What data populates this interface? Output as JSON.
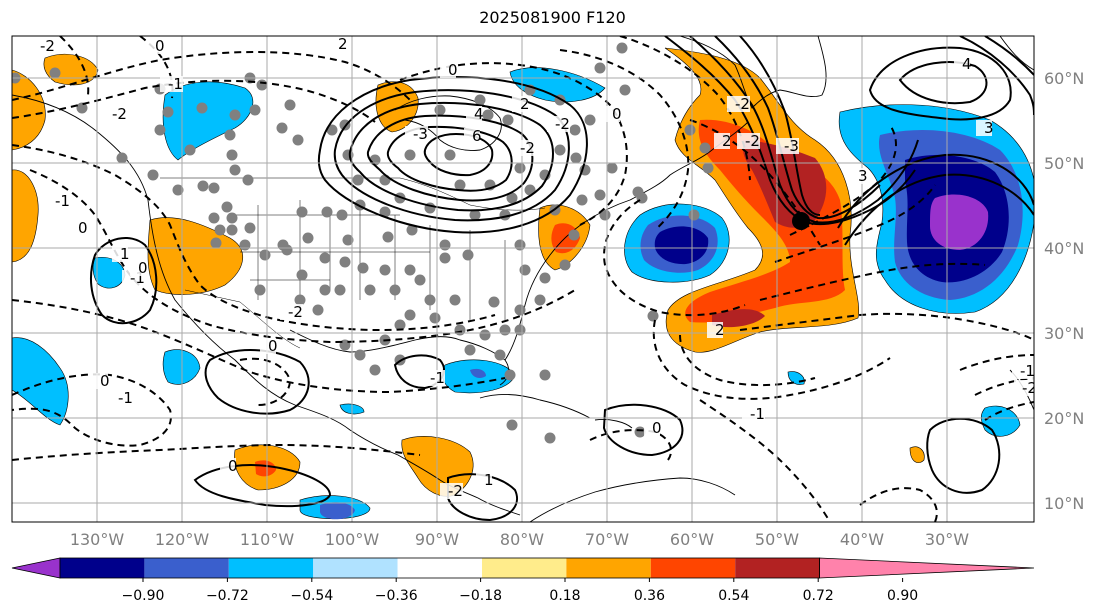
{
  "title": "2025081900 F120",
  "map": {
    "longitude_labels": [
      "130°W",
      "120°W",
      "110°W",
      "100°W",
      "90°W",
      "80°W",
      "70°W",
      "60°W",
      "50°W",
      "40°W",
      "30°W"
    ],
    "latitude_labels": [
      "60°N",
      "50°N",
      "40°N",
      "30°N",
      "20°N",
      "10°N"
    ],
    "contour_labels": [
      {
        "text": "-2"
      },
      {
        "text": "0"
      },
      {
        "text": "-1"
      },
      {
        "text": "-2"
      },
      {
        "text": "2"
      },
      {
        "text": "0"
      },
      {
        "text": "4"
      },
      {
        "text": "6"
      },
      {
        "text": "-3"
      },
      {
        "text": "-2"
      },
      {
        "text": "-2"
      },
      {
        "text": "2"
      },
      {
        "text": "0"
      },
      {
        "text": "-2"
      },
      {
        "text": "-2"
      },
      {
        "text": "2"
      },
      {
        "text": "-3"
      },
      {
        "text": "3"
      },
      {
        "text": "4"
      },
      {
        "text": "3"
      },
      {
        "text": "-1"
      },
      {
        "text": "0"
      },
      {
        "text": "-1"
      },
      {
        "text": "0"
      },
      {
        "text": "-2"
      },
      {
        "text": "1"
      },
      {
        "text": "0"
      },
      {
        "text": "0"
      },
      {
        "text": "-1"
      },
      {
        "text": "-2"
      },
      {
        "text": "-1"
      },
      {
        "text": "1"
      },
      {
        "text": "0"
      },
      {
        "text": "0"
      },
      {
        "text": "-1"
      },
      {
        "text": "2"
      },
      {
        "text": "-1"
      },
      {
        "text": "-2"
      }
    ]
  },
  "colorbar": {
    "tick_labels": [
      "−0.90",
      "−0.72",
      "−0.54",
      "−0.36",
      "−0.18",
      "0.18",
      "0.36",
      "0.54",
      "0.72",
      "0.90"
    ],
    "colors": [
      "#9932cc",
      "#00008b",
      "#3a5fcd",
      "#00bfff",
      "#b0e2ff",
      "#ffffff",
      "#ffec8b",
      "#ffa500",
      "#ff4500",
      "#b22222",
      "#ff82ab"
    ]
  }
}
